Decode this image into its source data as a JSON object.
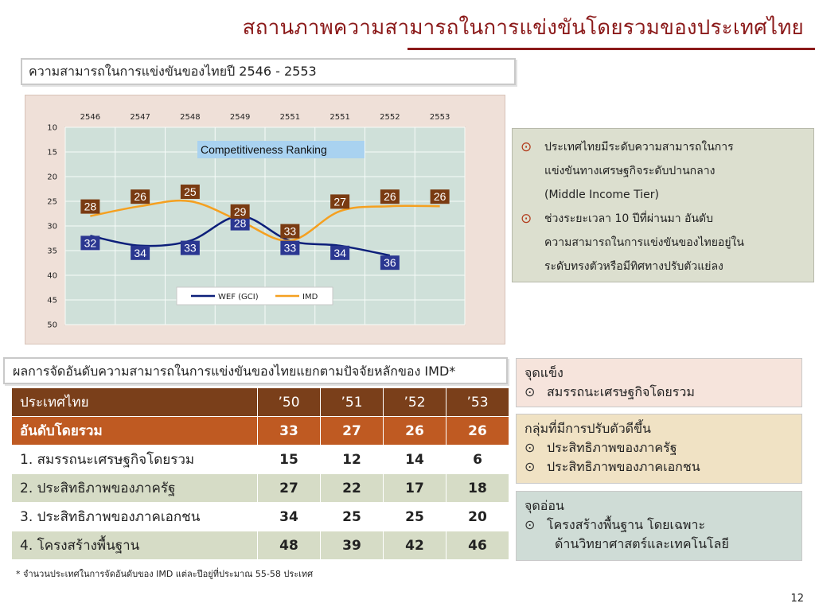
{
  "page": {
    "title": "สถานภาพความสามารถในการแข่งขันโดยรวมของประเทศไทย",
    "page_number": "12"
  },
  "chart_box": {
    "heading": "ความสามารถในการแข่งขันของไทยปี 2546 - 2553",
    "label": "Competitiveness Ranking"
  },
  "chart_data": {
    "type": "line",
    "title": "",
    "categories": [
      "2546",
      "2547",
      "2548",
      "2549",
      "2551",
      "2551",
      "2552",
      "2553"
    ],
    "y_ticks": [
      "10",
      "15",
      "20",
      "25",
      "30",
      "35",
      "40",
      "45",
      "50"
    ],
    "ylim": [
      10,
      50
    ],
    "y_reversed": true,
    "grid": true,
    "legend_position": "bottom-center",
    "series": [
      {
        "name": "WEF (GCI)",
        "color": "#0d1f7a",
        "values": [
          32,
          34,
          33,
          28,
          33,
          34,
          36,
          null
        ]
      },
      {
        "name": "IMD",
        "color": "#f5a020",
        "values": [
          28,
          26,
          25,
          29,
          33,
          27,
          26,
          26
        ]
      }
    ]
  },
  "bullets": [
    {
      "lines": [
        "ประเทศไทยมีระดับความสามารถในการ",
        "แข่งขันทางเศรษฐกิจระดับปานกลาง",
        "(Middle Income Tier)"
      ]
    },
    {
      "lines": [
        "ช่วงระยะเวลา 10 ปีที่ผ่านมา อันดับ",
        "ความสามารถในการแข่งขันของไทยอยู่ใน",
        "ระดับทรงตัวหรือมีทิศทางปรับตัวแย่ลง"
      ]
    }
  ],
  "table_box": {
    "heading": "ผลการจัดอันดับความสามารถในการแข่งขันของไทยแยกตามปัจจัยหลักของ IMD*"
  },
  "table": {
    "header": [
      "ประเทศไทย",
      "’50",
      "’51",
      "’52",
      "’53"
    ],
    "overall": [
      "อันดับโดยรวม",
      "33",
      "27",
      "26",
      "26"
    ],
    "rows": [
      [
        "1. สมรรถนะเศรษฐกิจโดยรวม",
        "15",
        "12",
        "14",
        "6"
      ],
      [
        "2. ประสิทธิภาพของภาครัฐ",
        "27",
        "22",
        "17",
        "18"
      ],
      [
        "3. ประสิทธิภาพของภาคเอกชน",
        "34",
        "25",
        "25",
        "20"
      ],
      [
        "4. โครงสร้างพื้นฐาน",
        "48",
        "39",
        "42",
        "46"
      ]
    ]
  },
  "footnote": "* จำนวนประเทศในการจัดอันดับของ IMD แต่ละปีอยู่ที่ประมาณ 55-58 ประเทศ",
  "panels": {
    "strength": {
      "title": "จุดแข็ง",
      "items": [
        "สมรรถนะเศรษฐกิจโดยรวม"
      ]
    },
    "improved": {
      "title": "กลุ่มที่มีการปรับตัวดีขึ้น",
      "items": [
        "ประสิทธิภาพของภาครัฐ",
        "ประสิทธิภาพของภาคเอกชน"
      ]
    },
    "weakness": {
      "title": "จุดอ่อน",
      "item_line1": "โครงสร้างพื้นฐาน โดยเฉพาะ",
      "item_line2": "ด้านวิทยาศาสตร์และเทคโนโลยี"
    }
  },
  "bullet_mark": "⊙"
}
